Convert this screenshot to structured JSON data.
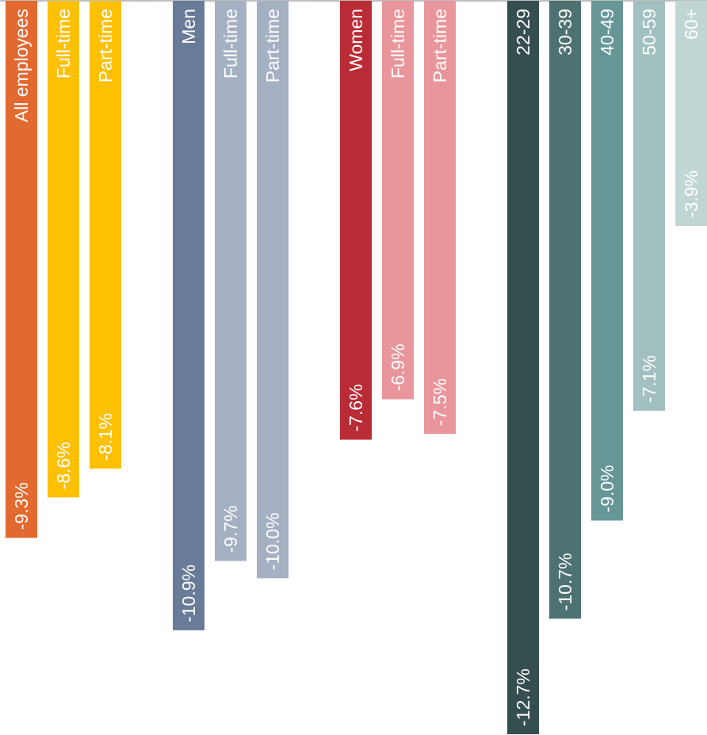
{
  "chart_data": {
    "type": "bar",
    "orientation": "vertical-down",
    "title": "",
    "xlabel": "",
    "ylabel": "",
    "ylim": [
      -13,
      0
    ],
    "grid": false,
    "legend": "none",
    "bars": [
      {
        "label": "All employees",
        "value": -9.3,
        "value_label": "-9.3%",
        "color": "#E2692F",
        "group": 0
      },
      {
        "label": "Full-time",
        "value": -8.6,
        "value_label": "-8.6%",
        "color": "#FDC003",
        "group": 0
      },
      {
        "label": "Part-time",
        "value": -8.1,
        "value_label": "-8.1%",
        "color": "#FDC003",
        "group": 0
      },
      {
        "label": "Men",
        "value": -10.9,
        "value_label": "-10.9%",
        "color": "#687B99",
        "group": 1
      },
      {
        "label": "Full-time",
        "value": -9.7,
        "value_label": "-9.7%",
        "color": "#A5B0C3",
        "group": 1
      },
      {
        "label": "Part-time",
        "value": -10.0,
        "value_label": "-10.0%",
        "color": "#A5B0C3",
        "group": 1
      },
      {
        "label": "Women",
        "value": -7.6,
        "value_label": "-7.6%",
        "color": "#B92B35",
        "group": 2
      },
      {
        "label": "Full-time",
        "value": -6.9,
        "value_label": "-6.9%",
        "color": "#E8969B",
        "group": 2
      },
      {
        "label": "Part-time",
        "value": -7.5,
        "value_label": "-7.5%",
        "color": "#E8969B",
        "group": 2
      },
      {
        "label": "22-29",
        "value": -12.7,
        "value_label": "-12.7%",
        "color": "#354E4F",
        "group": 3
      },
      {
        "label": "30-39",
        "value": -10.7,
        "value_label": "-10.7%",
        "color": "#4D7271",
        "group": 3
      },
      {
        "label": "40-49",
        "value": -9.0,
        "value_label": "-9.0%",
        "color": "#669796",
        "group": 3
      },
      {
        "label": "50-59",
        "value": -7.1,
        "value_label": "-7.1%",
        "color": "#A2C0BF",
        "group": 3
      },
      {
        "label": "60+",
        "value": -3.9,
        "value_label": "-3.9%",
        "color": "#C0D6D4",
        "group": 3
      }
    ]
  }
}
